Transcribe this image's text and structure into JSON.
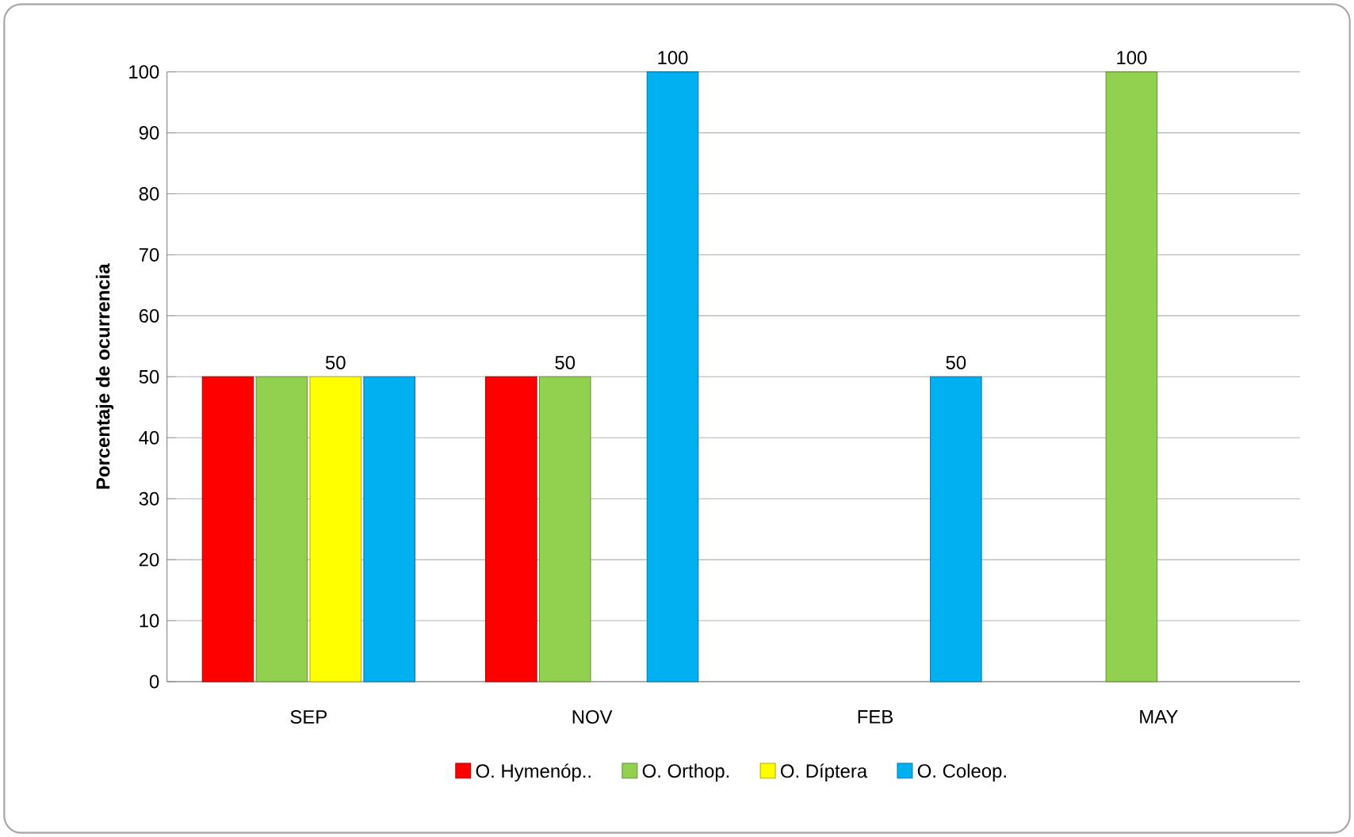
{
  "chart_data": {
    "type": "bar",
    "ylabel": "Porcentaje de ocurrencia",
    "categories": [
      "SEP",
      "NOV",
      "FEB",
      "MAY"
    ],
    "series": [
      {
        "name": "O. Hymenóp..",
        "color": "#ff0000",
        "values": [
          50,
          50,
          null,
          null
        ]
      },
      {
        "name": "O. Orthop.",
        "color": "#92d050",
        "values": [
          50,
          50,
          null,
          100
        ],
        "value_labels": [
          null,
          "50",
          null,
          "100"
        ]
      },
      {
        "name": "O. Díptera",
        "color": "#ffff00",
        "values": [
          50,
          null,
          null,
          null
        ],
        "value_labels": [
          "50",
          null,
          null,
          null
        ]
      },
      {
        "name": "O. Coleop.",
        "color": "#00b0f0",
        "values": [
          50,
          100,
          50,
          null
        ],
        "value_labels": [
          null,
          "100",
          "50",
          null
        ]
      }
    ],
    "ylim": [
      0,
      100
    ],
    "yticks": [
      0,
      10,
      20,
      30,
      40,
      50,
      60,
      70,
      80,
      90,
      100
    ],
    "grid": "y",
    "legend": "bottom"
  }
}
